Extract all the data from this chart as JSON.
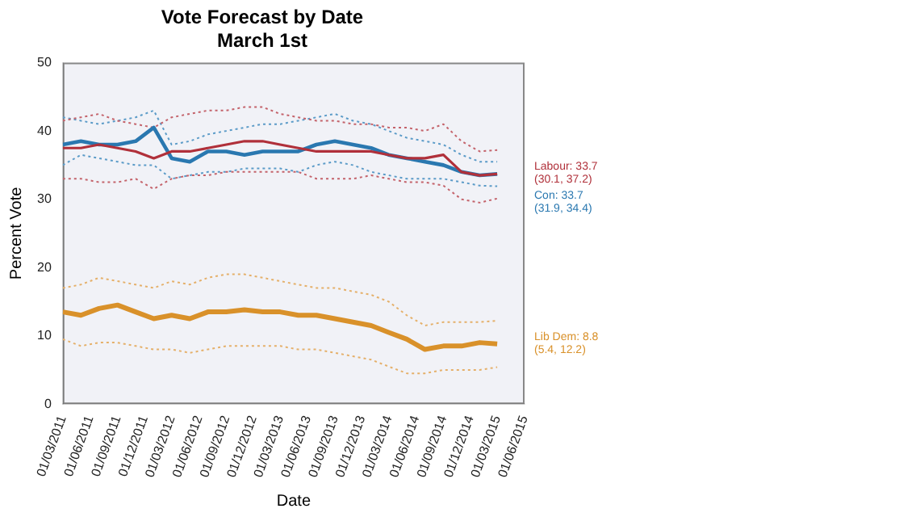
{
  "chart_data": {
    "type": "line",
    "title": "Vote Forecast by Date",
    "subtitle": "March 1st",
    "xlabel": "Date",
    "ylabel": "Percent Vote",
    "x": [
      "2011-03-01",
      "2011-05-01",
      "2011-07-01",
      "2011-09-01",
      "2011-11-01",
      "2012-01-01",
      "2012-03-01",
      "2012-05-01",
      "2012-07-01",
      "2012-09-01",
      "2012-11-01",
      "2013-01-01",
      "2013-03-01",
      "2013-05-01",
      "2013-07-01",
      "2013-09-01",
      "2013-11-01",
      "2014-01-01",
      "2014-03-01",
      "2014-05-01",
      "2014-07-01",
      "2014-09-01",
      "2014-11-01",
      "2015-01-01",
      "2015-03-01"
    ],
    "series": [
      {
        "color": "#b0303a",
        "values": [
          37.5,
          37.5,
          38,
          37.5,
          37,
          36,
          37,
          37,
          37.5,
          38,
          38.5,
          38.5,
          38,
          37.5,
          37,
          37,
          37,
          37,
          36.5,
          36,
          36,
          36.5,
          34,
          33.5,
          33.7
        ]
      },
      {
        "color": "#2a78b0",
        "values": [
          38,
          38.5,
          38,
          38,
          38.5,
          40.5,
          36,
          35.5,
          37,
          37,
          36.5,
          37,
          37,
          37,
          38,
          38.5,
          38,
          37.5,
          36.5,
          36,
          35.5,
          35,
          34,
          33.5,
          33.7
        ]
      },
      {
        "color": "#d9912a",
        "values": [
          13.5,
          13,
          14,
          14.5,
          13.5,
          12.5,
          13,
          12.5,
          13.5,
          13.5,
          13.8,
          13.5,
          13.5,
          13,
          13,
          12.5,
          12,
          11.5,
          10.5,
          9.5,
          8,
          8.5,
          8.5,
          9,
          8.8
        ]
      },
      {
        "color": "#c4636b",
        "line_style": "dotted",
        "values": [
          41.5,
          42,
          42.5,
          41.5,
          41,
          40.5,
          42,
          42.5,
          43,
          43,
          43.5,
          43.5,
          42.5,
          42,
          41.5,
          41.5,
          41,
          41,
          40.5,
          40.5,
          40,
          41,
          38.5,
          37,
          37.2
        ]
      },
      {
        "color": "#c4636b",
        "line_style": "dotted",
        "values": [
          33,
          33,
          32.5,
          32.5,
          33,
          31.5,
          33,
          33.5,
          33.5,
          34,
          34,
          34,
          34,
          34,
          33,
          33,
          33,
          33.5,
          33,
          32.5,
          32.5,
          32,
          30,
          29.5,
          30.1
        ]
      },
      {
        "color": "#5b9bc8",
        "line_style": "dotted",
        "values": [
          42,
          41.5,
          41,
          41.5,
          42,
          43,
          38,
          38.5,
          39.5,
          40,
          40.5,
          41,
          41,
          41.5,
          42,
          42.5,
          41.5,
          41,
          40,
          39,
          38.5,
          38,
          36.5,
          35.5,
          35.5
        ]
      },
      {
        "color": "#5b9bc8",
        "line_style": "dotted",
        "values": [
          35,
          36.5,
          36,
          35.5,
          35,
          35,
          33,
          33.5,
          34,
          34,
          34.5,
          34.5,
          34.5,
          34,
          35,
          35.5,
          35,
          34,
          33.5,
          33,
          33,
          33,
          32.5,
          32,
          31.9
        ]
      },
      {
        "color": "#e5b06a",
        "line_style": "dotted",
        "values": [
          17,
          17.5,
          18.5,
          18,
          17.5,
          17,
          18,
          17.5,
          18.5,
          19,
          19,
          18.5,
          18,
          17.5,
          17,
          17,
          16.5,
          16,
          15,
          13,
          11.5,
          12,
          12,
          12,
          12.2
        ]
      },
      {
        "color": "#e5b06a",
        "line_style": "dotted",
        "values": [
          9.5,
          8.5,
          9,
          9,
          8.5,
          8,
          8,
          7.5,
          8,
          8.5,
          8.5,
          8.5,
          8.5,
          8,
          8,
          7.5,
          7,
          6.5,
          5.5,
          4.5,
          4.5,
          5,
          5,
          5,
          5.4
        ]
      }
    ],
    "annotations": [
      "Labour: 33.7\n(30.1, 37.2)",
      "Con: 33.7\n(31.9, 34.4)",
      "Lib Dem: 8.8\n(5.4, 12.2)"
    ],
    "xlim": [
      "2011-03-01",
      "2015-06-01"
    ],
    "xticks": [
      {
        "value": "2011-03-01",
        "label": "01/03/2011"
      },
      {
        "value": "2011-06-01",
        "label": "01/06/2011"
      },
      {
        "value": "2011-09-01",
        "label": "01/09/2011"
      },
      {
        "value": "2011-12-01",
        "label": "01/12/2011"
      },
      {
        "value": "2012-03-01",
        "label": "01/03/2012"
      },
      {
        "value": "2012-06-01",
        "label": "01/06/2012"
      },
      {
        "value": "2012-09-01",
        "label": "01/09/2012"
      },
      {
        "value": "2012-12-01",
        "label": "01/12/2012"
      },
      {
        "value": "2013-03-01",
        "label": "01/03/2013"
      },
      {
        "value": "2013-06-01",
        "label": "01/06/2013"
      },
      {
        "value": "2013-09-01",
        "label": "01/09/2013"
      },
      {
        "value": "2013-12-01",
        "label": "01/12/2013"
      },
      {
        "value": "2014-03-01",
        "label": "01/03/2014"
      },
      {
        "value": "2014-06-01",
        "label": "01/06/2014"
      },
      {
        "value": "2014-09-01",
        "label": "01/09/2014"
      },
      {
        "value": "2014-12-01",
        "label": "01/12/2014"
      },
      {
        "value": "2015-03-01",
        "label": "01/03/2015"
      },
      {
        "value": "2015-06-01",
        "label": "01/06/2015"
      }
    ],
    "ylim": [
      0,
      50
    ],
    "yticks": [
      0,
      10,
      20,
      30,
      40,
      50
    ],
    "grid": false,
    "legend": false,
    "marker": "none",
    "line_style": "solid"
  }
}
